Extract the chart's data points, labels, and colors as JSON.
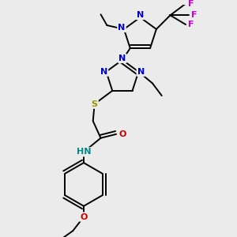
{
  "bg_color": "#ebebeb",
  "atom_colors": {
    "N": "#0000cc",
    "S": "#999900",
    "O": "#cc0000",
    "F": "#cc00cc",
    "C": "#000000",
    "H": "#008888"
  },
  "bond_color": "#000000",
  "bond_width": 1.4
}
